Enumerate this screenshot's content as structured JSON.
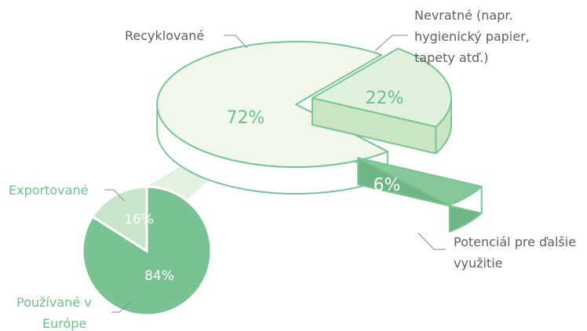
{
  "chart_data": [
    {
      "type": "pie",
      "slices": [
        {
          "name": "Recyklované",
          "value": 72,
          "label": "72%"
        },
        {
          "name": "Nevratné (napr. hygienický papier, tapety atď.)",
          "value": 22,
          "label": "22%"
        },
        {
          "name": "Potenciál pre ďalšie využitie",
          "value": 6,
          "label": "6%"
        }
      ]
    },
    {
      "type": "pie",
      "slices": [
        {
          "name": "Exportované",
          "value": 16,
          "label": "16%"
        },
        {
          "name": "Používané v Európe",
          "value": 84,
          "label": "84%"
        }
      ]
    }
  ],
  "callouts": {
    "recycled": [
      "Recyklované"
    ],
    "nonreturn": [
      "Nevratné (napr.",
      "hygienický papier,",
      "tapety atď.)"
    ],
    "potential": [
      "Potenciál pre ďalšie",
      "využitie"
    ],
    "exported": [
      "Exportované"
    ],
    "europe": [
      "Používané v",
      "Európe"
    ]
  },
  "colors": {
    "main_top": "#f2f7ee",
    "main_side": "#ffffff",
    "nonreturn_top": "#dff0dc",
    "nonreturn_side": "#c9e5c3",
    "potential_top": "#86c89c",
    "potential_side": "#6fb586",
    "outline": "#79c593",
    "small_big": "#79c293",
    "small_small": "#c9e5c9",
    "cone": "#e3f1df",
    "label_green": "#6cc08a",
    "label_white": "#ffffff",
    "label_gray": "#5f5f5f"
  }
}
